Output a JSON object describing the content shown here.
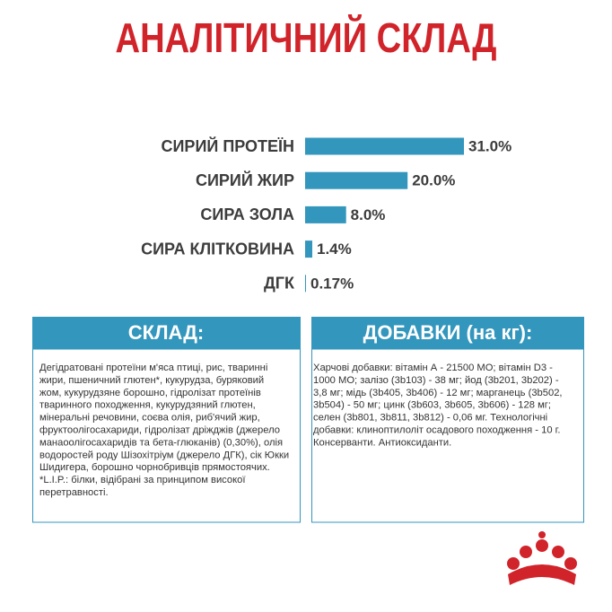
{
  "chart_data": {
    "type": "bar",
    "orientation": "horizontal",
    "title": "АНАЛІТИЧНИЙ СКЛАД",
    "categories": [
      "СИРИЙ ПРОТЕЇН",
      "СИРИЙ ЖИР",
      "СИРА ЗОЛА",
      "СИРА КЛІТКОВИНА",
      "ДГК"
    ],
    "values": [
      31.0,
      20.0,
      8.0,
      1.4,
      0.17
    ],
    "value_labels": [
      "31.0%",
      "20.0%",
      "8.0%",
      "1.4%",
      "0.17%"
    ],
    "color": "#3396bd"
  },
  "composition": {
    "title": "СКЛАД:",
    "lines": [
      "Дегідратовані протеїни м'яса птиці, рис, тваринні",
      "жири, пшеничний глютен*, кукурудза, буряковий",
      "жом, кукурудзяне борошно, гідролізат протеїнів",
      "тваринного походження, кукурудзяний глютен,",
      "мінеральні речовини, соєва олія, риб'ячий жир,",
      "фруктоолігосахариди, гідролізат дріжджів (джерело",
      "манаоолігосахаридів та бета-глюканів) (0,30%), олія",
      "водоростей роду Шізохітріум (джерело ДГК), сік Юкки",
      "Шидигера, борошно чорнобривців прямостоячих.",
      "*L.I.P.: білки, відібрані за принципом високої",
      "перетравності."
    ]
  },
  "additives": {
    "title": "ДОБАВКИ (на кг):",
    "lines": [
      "Харчові добавки: вітамін А - 21500 МО; вітамін D3 -",
      "1000 МО; залізо (3b103) - 38 мг; йод (3b201, 3b202) -",
      "3,8 мг; мідь (3b405, 3b406) - 12 мг; марганець (3b502,",
      "3b504) - 50 мг; цинк (3b603, 3b605, 3b606) - 128 мг;",
      "селен (3b801, 3b811, 3b812) - 0,06 мг. Технологічні",
      "добавки: клиноптилоліт осадового походження - 10 г.",
      "Консерванти. Антиоксиданти."
    ]
  }
}
